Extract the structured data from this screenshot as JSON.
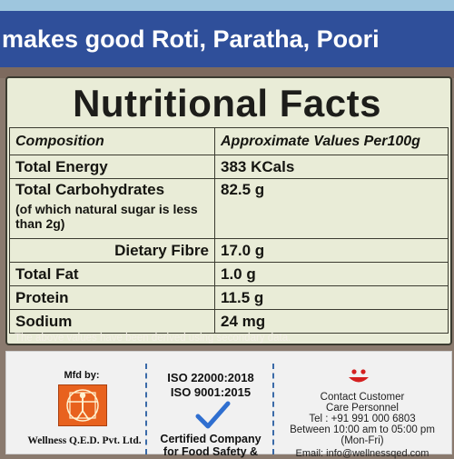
{
  "banner": {
    "text": "makes good Roti, Paratha, Poori"
  },
  "panel": {
    "title": "Nutritional Facts",
    "headers": {
      "composition": "Composition",
      "values": "Approximate Values Per100g"
    },
    "rows": [
      {
        "name": "Total Energy",
        "value": "383 KCals"
      },
      {
        "name": "Total Carbohydrates",
        "sub": "(of which natural sugar is less than 2g)",
        "value": "82.5 g"
      },
      {
        "name": "Dietary Fibre",
        "value": "17.0 g"
      },
      {
        "name": "Total Fat",
        "value": "1.0 g"
      },
      {
        "name": "Protein",
        "value": "11.5 g"
      },
      {
        "name": "Sodium",
        "value": "24 mg"
      }
    ],
    "note": "The above values have been derived using secondary data."
  },
  "footer": {
    "mfd_label": "Mfd by:",
    "company": "Wellness Q.E.D. Pvt. Ltd.",
    "iso_lines": [
      "ISO 22000:2018",
      "ISO 9001:2015"
    ],
    "certified_lines": [
      "Certified Company",
      "for Food Safety &"
    ],
    "contact_lines": [
      "Contact Customer",
      "Care Personnel",
      "Tel : +91 991 000 6803",
      "Between 10:00 am to 05:00 pm (Mon-Fri)"
    ],
    "email": "Email: info@wellnessqed.com"
  },
  "colors": {
    "banner": "#2f4f9a",
    "panel": "#e9ecd7",
    "background": "#8a7a6e",
    "check": "#2f6fd0",
    "smiley": "#d42020",
    "logo": "#e8621e"
  },
  "icons": {
    "certification": "checkmark-icon",
    "customer_care": "smiley-icon",
    "manufacturer": "vitruvian-logo-icon"
  }
}
